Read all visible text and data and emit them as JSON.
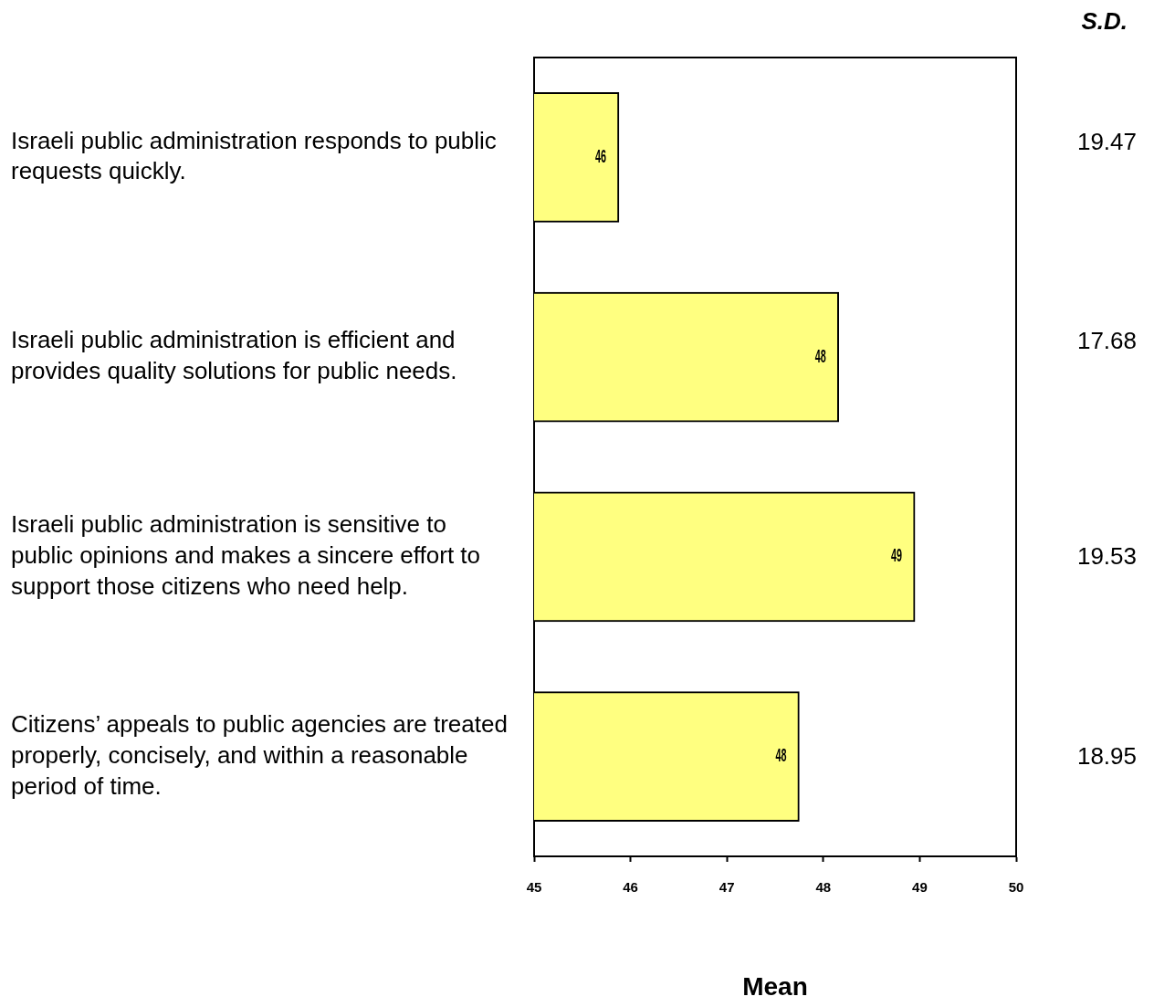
{
  "chart_data": {
    "type": "bar",
    "orientation": "horizontal",
    "xlabel": "Mean",
    "categories": [
      "Israeli public administration responds to public requests quickly.",
      "Israeli public administration is efficient and provides quality solutions for public needs.",
      "Israeli public administration is sensitive to public opinions and makes a sincere effort to support those citizens who need help.",
      "Citizens’ appeals to public agencies are treated properly, concisely, and within a reasonable period of time."
    ],
    "values": [
      45.88,
      48.16,
      48.95,
      47.75
    ],
    "value_labels": [
      "46",
      "48",
      "49",
      "48"
    ],
    "color": "#ffff80",
    "xlim": [
      45,
      50
    ],
    "xticks": [
      45,
      46,
      47,
      48,
      49,
      50
    ],
    "grid": false,
    "legend": false,
    "annotations": [
      "S.D.",
      "19.47",
      "17.68",
      "19.53",
      "18.95"
    ]
  }
}
